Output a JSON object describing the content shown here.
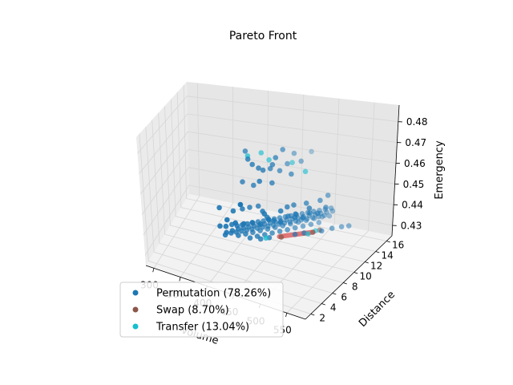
{
  "chart_data": {
    "type": "scatter",
    "projection": "3d",
    "title": "Pareto Front",
    "xlabel": "Volume",
    "ylabel": "Distance",
    "zlabel": "Emergency",
    "xlim": [
      285,
      585
    ],
    "ylim": [
      1,
      17
    ],
    "zlim": [
      0.425,
      0.488
    ],
    "x_ticks": [
      300,
      350,
      400,
      450,
      500,
      550
    ],
    "y_ticks": [
      2,
      4,
      6,
      8,
      10,
      12,
      14,
      16
    ],
    "z_ticks": [
      0.43,
      0.44,
      0.45,
      0.46,
      0.47,
      0.48
    ],
    "grid": true,
    "legend": {
      "placement": "lower-left",
      "entries": [
        {
          "label": "Permutation (78.26%)",
          "color": "#1f77b4"
        },
        {
          "label": "Swap (8.70%)",
          "color": "#8c564b"
        },
        {
          "label": "Transfer (13.04%)",
          "color": "#17becf"
        }
      ]
    },
    "front_line": {
      "color": "#d62728",
      "points": [
        [
          452,
          11.6,
          0.4285
        ],
        [
          488,
          14.0,
          0.4275
        ]
      ]
    },
    "series": [
      {
        "name": "Permutation (78.26%)",
        "color": "#1f77b4",
        "points": [
          [
            458,
            3.4,
            0.487
          ],
          [
            464,
            3.2,
            0.484
          ],
          [
            468,
            3.6,
            0.481
          ],
          [
            472,
            4.4,
            0.478
          ],
          [
            478,
            4.6,
            0.477
          ],
          [
            482,
            5.6,
            0.476
          ],
          [
            489,
            5.2,
            0.479
          ],
          [
            496,
            5.0,
            0.483
          ],
          [
            503,
            5.6,
            0.486
          ],
          [
            438,
            5.2,
            0.468
          ],
          [
            452,
            5.8,
            0.466
          ],
          [
            446,
            3.6,
            0.461
          ],
          [
            470,
            4.8,
            0.471
          ],
          [
            480,
            6.2,
            0.468
          ],
          [
            488,
            6.8,
            0.473
          ],
          [
            494,
            7.6,
            0.475
          ],
          [
            500,
            8.2,
            0.479
          ],
          [
            502,
            7.4,
            0.471
          ],
          [
            505,
            9.0,
            0.474
          ],
          [
            510,
            10.4,
            0.476
          ],
          [
            400,
            4.8,
            0.454
          ],
          [
            418,
            5.6,
            0.452
          ],
          [
            428,
            6.4,
            0.452
          ],
          [
            436,
            7.0,
            0.452
          ],
          [
            446,
            7.6,
            0.452
          ],
          [
            456,
            7.2,
            0.451
          ],
          [
            462,
            6.8,
            0.451
          ],
          [
            472,
            6.4,
            0.45
          ],
          [
            480,
            8.0,
            0.451
          ],
          [
            486,
            8.6,
            0.452
          ],
          [
            492,
            9.2,
            0.452
          ],
          [
            498,
            8.8,
            0.449
          ],
          [
            506,
            10.0,
            0.452
          ],
          [
            514,
            9.6,
            0.451
          ],
          [
            520,
            11.0,
            0.452
          ],
          [
            526,
            11.8,
            0.453
          ],
          [
            410,
            5.2,
            0.448
          ],
          [
            420,
            5.8,
            0.446
          ],
          [
            430,
            6.4,
            0.445
          ],
          [
            440,
            7.0,
            0.445
          ],
          [
            448,
            7.8,
            0.443
          ],
          [
            456,
            8.2,
            0.446
          ],
          [
            464,
            8.6,
            0.444
          ],
          [
            472,
            9.0,
            0.443
          ],
          [
            480,
            9.6,
            0.445
          ],
          [
            488,
            10.0,
            0.444
          ],
          [
            496,
            10.6,
            0.443
          ],
          [
            504,
            11.0,
            0.445
          ],
          [
            512,
            11.6,
            0.444
          ],
          [
            520,
            12.2,
            0.446
          ],
          [
            392,
            6.0,
            0.442
          ],
          [
            398,
            6.6,
            0.441
          ],
          [
            404,
            7.2,
            0.441
          ],
          [
            410,
            7.6,
            0.44
          ],
          [
            416,
            8.0,
            0.44
          ],
          [
            422,
            8.4,
            0.44
          ],
          [
            428,
            8.8,
            0.44
          ],
          [
            434,
            9.2,
            0.44
          ],
          [
            440,
            9.6,
            0.44
          ],
          [
            446,
            10.0,
            0.44
          ],
          [
            452,
            10.4,
            0.44
          ],
          [
            458,
            10.8,
            0.44
          ],
          [
            464,
            11.2,
            0.44
          ],
          [
            470,
            11.6,
            0.44
          ],
          [
            476,
            12.0,
            0.44
          ],
          [
            482,
            12.4,
            0.44
          ],
          [
            488,
            12.8,
            0.44
          ],
          [
            494,
            13.2,
            0.44
          ],
          [
            500,
            13.6,
            0.44
          ],
          [
            506,
            14.0,
            0.44
          ],
          [
            512,
            14.4,
            0.44
          ],
          [
            396,
            7.0,
            0.437
          ],
          [
            402,
            7.6,
            0.437
          ],
          [
            408,
            8.2,
            0.437
          ],
          [
            414,
            8.6,
            0.437
          ],
          [
            420,
            9.0,
            0.437
          ],
          [
            426,
            9.4,
            0.437
          ],
          [
            432,
            9.8,
            0.437
          ],
          [
            438,
            10.2,
            0.437
          ],
          [
            444,
            10.6,
            0.437
          ],
          [
            450,
            11.0,
            0.437
          ],
          [
            456,
            11.4,
            0.437
          ],
          [
            462,
            11.8,
            0.437
          ],
          [
            468,
            12.2,
            0.437
          ],
          [
            474,
            12.6,
            0.437
          ],
          [
            480,
            13.0,
            0.437
          ],
          [
            486,
            13.4,
            0.437
          ],
          [
            492,
            13.8,
            0.437
          ],
          [
            498,
            14.2,
            0.437
          ],
          [
            504,
            14.6,
            0.437
          ],
          [
            510,
            15.0,
            0.437
          ],
          [
            390,
            7.6,
            0.434
          ],
          [
            396,
            8.2,
            0.434
          ],
          [
            402,
            8.6,
            0.434
          ],
          [
            408,
            9.0,
            0.434
          ],
          [
            414,
            9.4,
            0.434
          ],
          [
            420,
            9.8,
            0.434
          ],
          [
            426,
            10.2,
            0.434
          ],
          [
            432,
            10.6,
            0.434
          ],
          [
            438,
            11.0,
            0.434
          ],
          [
            444,
            11.4,
            0.434
          ],
          [
            450,
            11.8,
            0.434
          ],
          [
            456,
            12.2,
            0.434
          ],
          [
            462,
            12.6,
            0.434
          ],
          [
            468,
            13.0,
            0.434
          ],
          [
            474,
            13.4,
            0.434
          ],
          [
            480,
            13.8,
            0.434
          ],
          [
            486,
            14.2,
            0.434
          ],
          [
            492,
            14.6,
            0.434
          ],
          [
            498,
            15.0,
            0.434
          ],
          [
            404,
            8.8,
            0.432
          ],
          [
            412,
            9.4,
            0.432
          ],
          [
            420,
            10.0,
            0.432
          ],
          [
            428,
            10.6,
            0.432
          ],
          [
            436,
            11.2,
            0.432
          ],
          [
            444,
            11.8,
            0.432
          ],
          [
            452,
            12.4,
            0.432
          ],
          [
            460,
            13.0,
            0.432
          ],
          [
            468,
            13.6,
            0.432
          ],
          [
            476,
            14.2,
            0.432
          ],
          [
            484,
            14.8,
            0.432
          ],
          [
            492,
            15.4,
            0.432
          ],
          [
            500,
            15.8,
            0.432
          ],
          [
            418,
            9.6,
            0.43
          ],
          [
            426,
            10.2,
            0.43
          ],
          [
            434,
            10.8,
            0.43
          ],
          [
            442,
            11.4,
            0.43
          ],
          [
            450,
            12.0,
            0.43
          ],
          [
            458,
            12.6,
            0.43
          ],
          [
            466,
            13.2,
            0.43
          ],
          [
            474,
            13.8,
            0.43
          ],
          [
            482,
            14.4,
            0.43
          ],
          [
            490,
            15.0,
            0.43
          ],
          [
            430,
            10.4,
            0.4285
          ],
          [
            440,
            11.0,
            0.4285
          ],
          [
            470,
            12.6,
            0.4285
          ],
          [
            480,
            13.2,
            0.4285
          ],
          [
            500,
            14.2,
            0.4285
          ],
          [
            510,
            15.0,
            0.4285
          ],
          [
            520,
            15.6,
            0.4285
          ],
          [
            528,
            16.0,
            0.4285
          ]
        ]
      },
      {
        "name": "Swap (8.70%)",
        "color": "#8c564b",
        "points": [
          [
            455,
            11.6,
            0.4285
          ],
          [
            488,
            14.0,
            0.4275
          ],
          [
            494,
            14.6,
            0.4275
          ]
        ]
      },
      {
        "name": "Transfer (13.04%)",
        "color": "#17becf",
        "points": [
          [
            462,
            3.4,
            0.485
          ],
          [
            472,
            5.0,
            0.484
          ],
          [
            480,
            5.6,
            0.48
          ],
          [
            502,
            7.6,
            0.476
          ],
          [
            520,
            8.0,
            0.472
          ],
          [
            486,
            13.2,
            0.4285
          ],
          [
            492,
            14.0,
            0.4285
          ],
          [
            436,
            10.8,
            0.4285
          ]
        ]
      }
    ]
  }
}
